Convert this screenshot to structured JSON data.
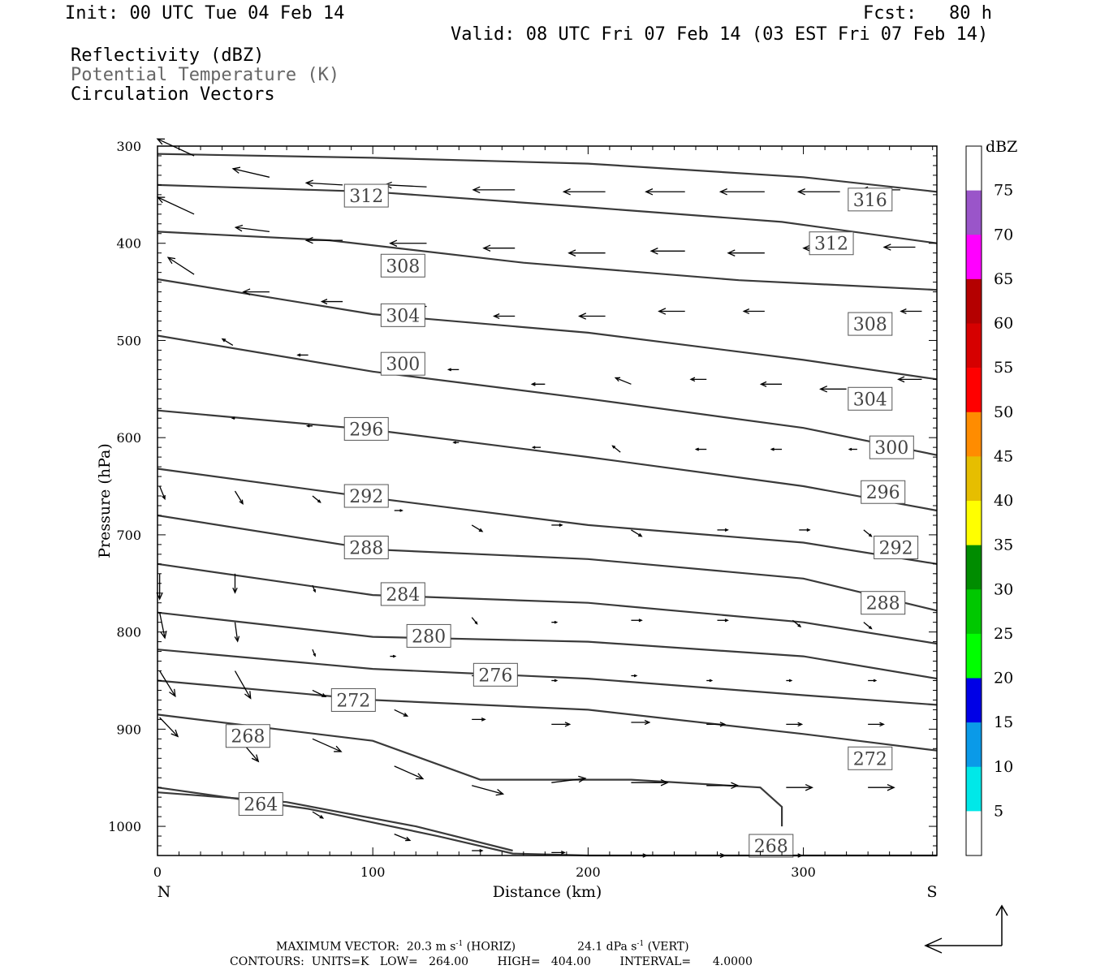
{
  "header": {
    "init": "Init: 00 UTC Tue 04 Feb 14",
    "fcst": "Fcst:   80 h",
    "valid": "Valid: 08 UTC Fri 07 Feb 14 (03 EST Fri 07 Feb 14)",
    "field1": "Reflectivity (dBZ)",
    "field2": "Potential Temperature (K)",
    "field3": "Circulation Vectors"
  },
  "footer": {
    "max_vector_prefix": "MAXIMUM VECTOR:  20.3 m s",
    "max_vector_horiz": " (HORIZ)",
    "max_vector_vert_value": "24.1 dPa s",
    "max_vector_vert": " (VERT)",
    "exponent": "-1",
    "contours": "CONTOURS:  UNITS=K   LOW=   264.00        HIGH=   404.00        INTERVAL=      4.0000"
  },
  "colors": {
    "contour": "#3a3a3a",
    "axes": "#000000"
  },
  "chart_data": {
    "type": "cross-section",
    "xlabel": "Distance (km)",
    "ylabel": "Pressure (hPa)",
    "xlim": [
      0,
      362
    ],
    "ylim": [
      300,
      1030
    ],
    "y_scale": "linear, inverted",
    "x_ticks": [
      0,
      100,
      200,
      300
    ],
    "y_ticks": [
      300,
      400,
      500,
      600,
      700,
      800,
      900,
      1000
    ],
    "x_end_labels": {
      "left": "N",
      "right": "S"
    },
    "colorbar": {
      "unit": "dBZ",
      "levels": [
        5,
        10,
        15,
        20,
        25,
        30,
        35,
        40,
        45,
        50,
        55,
        60,
        65,
        70,
        75
      ],
      "colors": [
        "#ffffff",
        "#00e8e8",
        "#0a9ae8",
        "#0000e6",
        "#00ff00",
        "#00c800",
        "#008c00",
        "#ffff00",
        "#e6be00",
        "#ff8c00",
        "#ff0000",
        "#d60000",
        "#b40000",
        "#ff00ff",
        "#9a55c9",
        "#ffffff"
      ]
    },
    "isentropes": [
      {
        "theta": 316,
        "points": [
          [
            0,
            308
          ],
          [
            100,
            312
          ],
          [
            200,
            318
          ],
          [
            300,
            332
          ],
          [
            362,
            347
          ]
        ],
        "labels": [
          {
            "text": "316",
            "x": 331,
            "p": 355
          }
        ]
      },
      {
        "theta": 312,
        "points": [
          [
            0,
            340
          ],
          [
            100,
            347
          ],
          [
            200,
            363
          ],
          [
            290,
            378
          ],
          [
            362,
            400
          ]
        ],
        "labels": [
          {
            "text": "312",
            "x": 97,
            "p": 351
          },
          {
            "text": "312",
            "x": 313,
            "p": 400
          }
        ]
      },
      {
        "theta": 308,
        "points": [
          [
            0,
            388
          ],
          [
            80,
            397
          ],
          [
            170,
            420
          ],
          [
            270,
            438
          ],
          [
            362,
            448
          ]
        ],
        "labels": [
          {
            "text": "308",
            "x": 114,
            "p": 423
          },
          {
            "text": "308",
            "x": 331,
            "p": 483
          }
        ]
      },
      {
        "theta": 304,
        "points": [
          [
            0,
            437
          ],
          [
            100,
            473
          ],
          [
            200,
            492
          ],
          [
            300,
            520
          ],
          [
            362,
            540
          ]
        ],
        "labels": [
          {
            "text": "304",
            "x": 114,
            "p": 474
          },
          {
            "text": "304",
            "x": 331,
            "p": 560
          }
        ]
      },
      {
        "theta": 300,
        "points": [
          [
            0,
            495
          ],
          [
            100,
            532
          ],
          [
            200,
            560
          ],
          [
            300,
            590
          ],
          [
            362,
            618
          ]
        ],
        "labels": [
          {
            "text": "300",
            "x": 114,
            "p": 524
          },
          {
            "text": "300",
            "x": 341,
            "p": 610
          }
        ]
      },
      {
        "theta": 296,
        "points": [
          [
            0,
            572
          ],
          [
            100,
            592
          ],
          [
            200,
            620
          ],
          [
            300,
            650
          ],
          [
            362,
            675
          ]
        ],
        "labels": [
          {
            "text": "296",
            "x": 97,
            "p": 591
          },
          {
            "text": "296",
            "x": 337,
            "p": 656
          }
        ]
      },
      {
        "theta": 292,
        "points": [
          [
            0,
            632
          ],
          [
            100,
            662
          ],
          [
            200,
            690
          ],
          [
            300,
            708
          ],
          [
            362,
            730
          ]
        ],
        "labels": [
          {
            "text": "292",
            "x": 97,
            "p": 660
          },
          {
            "text": "292",
            "x": 343,
            "p": 713
          }
        ]
      },
      {
        "theta": 288,
        "points": [
          [
            0,
            680
          ],
          [
            100,
            715
          ],
          [
            200,
            725
          ],
          [
            300,
            745
          ],
          [
            362,
            778
          ]
        ],
        "labels": [
          {
            "text": "288",
            "x": 97,
            "p": 713
          },
          {
            "text": "288",
            "x": 337,
            "p": 770
          }
        ]
      },
      {
        "theta": 284,
        "points": [
          [
            0,
            730
          ],
          [
            100,
            762
          ],
          [
            200,
            770
          ],
          [
            300,
            790
          ],
          [
            362,
            812
          ]
        ],
        "labels": [
          {
            "text": "284",
            "x": 114,
            "p": 761
          }
        ]
      },
      {
        "theta": 280,
        "points": [
          [
            0,
            780
          ],
          [
            100,
            805
          ],
          [
            200,
            810
          ],
          [
            300,
            825
          ],
          [
            362,
            848
          ]
        ],
        "labels": [
          {
            "text": "280",
            "x": 126,
            "p": 804
          }
        ]
      },
      {
        "theta": 276,
        "points": [
          [
            0,
            818
          ],
          [
            100,
            838
          ],
          [
            200,
            848
          ],
          [
            300,
            865
          ],
          [
            362,
            875
          ]
        ],
        "labels": [
          {
            "text": "276",
            "x": 157,
            "p": 844
          }
        ]
      },
      {
        "theta": 272,
        "points": [
          [
            0,
            850
          ],
          [
            100,
            870
          ],
          [
            200,
            880
          ],
          [
            300,
            905
          ],
          [
            362,
            922
          ]
        ],
        "labels": [
          {
            "text": "272",
            "x": 91,
            "p": 870
          },
          {
            "text": "272",
            "x": 331,
            "p": 930
          }
        ]
      },
      {
        "theta": 268,
        "points": [
          [
            0,
            885
          ],
          [
            100,
            912
          ],
          [
            150,
            952
          ],
          [
            220,
            952
          ],
          [
            280,
            960
          ],
          [
            290,
            980
          ],
          [
            290,
            1000
          ]
        ],
        "labels": [
          {
            "text": "268",
            "x": 42,
            "p": 907
          },
          {
            "text": "268",
            "x": 285,
            "p": 1020
          }
        ]
      },
      {
        "theta": 264,
        "points": [
          [
            0,
            965
          ],
          [
            60,
            975
          ],
          [
            120,
            1000
          ],
          [
            165,
            1025
          ]
        ],
        "labels": [
          {
            "text": "264",
            "x": 48,
            "p": 977
          }
        ]
      }
    ],
    "surface": {
      "points": [
        [
          0,
          960
        ],
        [
          70,
          982
        ],
        [
          130,
          1010
        ],
        [
          165,
          1028
        ],
        [
          200,
          1030
        ],
        [
          362,
          1030
        ]
      ]
    },
    "vectors_note": "Circulation vectors: u in m/s (negative toward N), w in dPa/s (positive downward); max 20.3 m/s horiz, 24.1 dPa/s vert",
    "vectors": [
      [
        17,
        310,
        -15,
        -8
      ],
      [
        52,
        332,
        -14,
        -4
      ],
      [
        86,
        340,
        -14,
        -1
      ],
      [
        125,
        342,
        -16,
        -1
      ],
      [
        166,
        345,
        -16,
        0
      ],
      [
        208,
        347,
        -16,
        0
      ],
      [
        245,
        347,
        -15,
        0
      ],
      [
        282,
        347,
        -17,
        0
      ],
      [
        317,
        347,
        -16,
        0
      ],
      [
        345,
        345,
        -15,
        0
      ],
      [
        17,
        370,
        -14,
        -8
      ],
      [
        52,
        388,
        -13,
        -2
      ],
      [
        86,
        397,
        -14,
        0
      ],
      [
        125,
        400,
        -14,
        0
      ],
      [
        166,
        405,
        -12,
        0
      ],
      [
        208,
        410,
        -14,
        0
      ],
      [
        245,
        408,
        -13,
        0
      ],
      [
        282,
        410,
        -14,
        0
      ],
      [
        317,
        405,
        -14,
        0
      ],
      [
        352,
        404,
        -12,
        0
      ],
      [
        17,
        432,
        -10,
        -8
      ],
      [
        52,
        450,
        -10,
        0
      ],
      [
        86,
        460,
        -8,
        0
      ],
      [
        125,
        465,
        -7,
        0
      ],
      [
        166,
        475,
        -8,
        0
      ],
      [
        208,
        475,
        -10,
        0
      ],
      [
        245,
        470,
        -10,
        0
      ],
      [
        282,
        470,
        -8,
        0
      ],
      [
        355,
        470,
        -8,
        0
      ],
      [
        35,
        505,
        -4,
        -3
      ],
      [
        70,
        515,
        -4,
        0
      ],
      [
        140,
        530,
        -4,
        0
      ],
      [
        180,
        545,
        -5,
        0
      ],
      [
        220,
        545,
        -6,
        -3
      ],
      [
        255,
        540,
        -6,
        0
      ],
      [
        290,
        545,
        -8,
        0
      ],
      [
        320,
        550,
        -10,
        0
      ],
      [
        355,
        540,
        -9,
        0
      ],
      [
        36,
        580,
        -1,
        0
      ],
      [
        72,
        588,
        -2,
        0
      ],
      [
        140,
        605,
        -2,
        0
      ],
      [
        178,
        610,
        -3,
        0
      ],
      [
        215,
        615,
        -3,
        -3
      ],
      [
        255,
        612,
        -4,
        0
      ],
      [
        290,
        612,
        -4,
        0
      ],
      [
        325,
        612,
        -3,
        0
      ],
      [
        1,
        650,
        2,
        6
      ],
      [
        36,
        655,
        3,
        6
      ],
      [
        72,
        660,
        3,
        3
      ],
      [
        110,
        675,
        3,
        0
      ],
      [
        146,
        690,
        4,
        3
      ],
      [
        183,
        690,
        4,
        0
      ],
      [
        220,
        695,
        4,
        3
      ],
      [
        260,
        695,
        4,
        0
      ],
      [
        298,
        695,
        4,
        0
      ],
      [
        328,
        695,
        3,
        3
      ],
      [
        1,
        740,
        0,
        12
      ],
      [
        36,
        740,
        0,
        9
      ],
      [
        72,
        752,
        1,
        3
      ],
      [
        146,
        785,
        2,
        3
      ],
      [
        183,
        790,
        2,
        0
      ],
      [
        220,
        788,
        4,
        0
      ],
      [
        260,
        788,
        4,
        0
      ],
      [
        295,
        788,
        3,
        3
      ],
      [
        328,
        790,
        3,
        3
      ],
      [
        1,
        780,
        2,
        12
      ],
      [
        36,
        790,
        1,
        9
      ],
      [
        72,
        818,
        1,
        3
      ],
      [
        108,
        825,
        2,
        0
      ],
      [
        146,
        845,
        2,
        0
      ],
      [
        183,
        850,
        2,
        0
      ],
      [
        220,
        845,
        2,
        0
      ],
      [
        255,
        850,
        2,
        0
      ],
      [
        292,
        850,
        2,
        0
      ],
      [
        330,
        850,
        3,
        0
      ],
      [
        1,
        840,
        6,
        12
      ],
      [
        36,
        840,
        6,
        13
      ],
      [
        72,
        860,
        5,
        3
      ],
      [
        110,
        880,
        5,
        3
      ],
      [
        146,
        890,
        5,
        0
      ],
      [
        183,
        895,
        7,
        0
      ],
      [
        220,
        893,
        7,
        0
      ],
      [
        255,
        895,
        7,
        0
      ],
      [
        292,
        895,
        6,
        0
      ],
      [
        330,
        895,
        6,
        0
      ],
      [
        1,
        888,
        7,
        9
      ],
      [
        36,
        905,
        9,
        13
      ],
      [
        72,
        910,
        11,
        6
      ],
      [
        110,
        938,
        11,
        6
      ],
      [
        146,
        958,
        12,
        4
      ],
      [
        183,
        955,
        13,
        -2
      ],
      [
        220,
        955,
        14,
        0
      ],
      [
        255,
        958,
        12,
        0
      ],
      [
        292,
        960,
        10,
        0
      ],
      [
        330,
        960,
        10,
        0
      ],
      [
        72,
        985,
        4,
        3
      ],
      [
        110,
        1008,
        6,
        3
      ],
      [
        146,
        1025,
        4,
        0
      ],
      [
        183,
        1027,
        5,
        0
      ],
      [
        220,
        1030,
        6,
        0
      ],
      [
        255,
        1030,
        7,
        0
      ],
      [
        292,
        1030,
        6,
        0
      ]
    ]
  }
}
